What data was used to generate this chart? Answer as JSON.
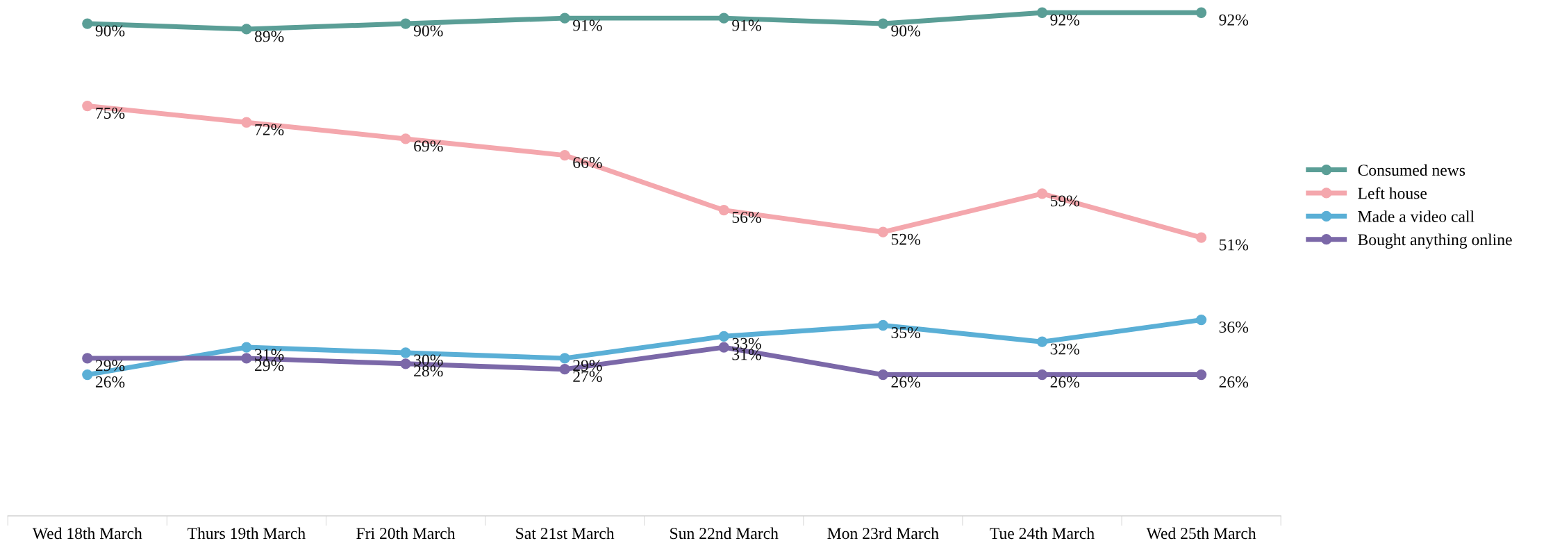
{
  "chart_data": {
    "type": "line",
    "categories": [
      "Wed 18th March",
      "Thurs 19th March",
      "Fri 20th March",
      "Sat 21st March",
      "Sun 22nd March",
      "Mon 23rd March",
      "Tue 24th March",
      "Wed 25th March"
    ],
    "legend": "right",
    "marker": "circle",
    "line_style": "solid",
    "tick_labels": "x",
    "series": [
      {
        "name": "Consumed news",
        "color": "#5a9e96",
        "values": [
          90,
          89,
          90,
          91,
          91,
          90,
          92,
          92
        ],
        "value_labels": [
          "90%",
          "89%",
          "90%",
          "91%",
          "91%",
          "90%",
          "92%",
          "92%"
        ]
      },
      {
        "name": "Left house",
        "color": "#f4a7ad",
        "values": [
          75,
          72,
          69,
          66,
          56,
          52,
          59,
          51
        ],
        "value_labels": [
          "75%",
          "72%",
          "69%",
          "66%",
          "56%",
          "52%",
          "59%",
          "51%"
        ]
      },
      {
        "name": "Made a video call",
        "color": "#5aafd6",
        "values": [
          26,
          31,
          30,
          29,
          33,
          35,
          32,
          36
        ],
        "value_labels": [
          "26%",
          "31%",
          "30%",
          "29%",
          "33%",
          "35%",
          "32%",
          "36%"
        ]
      },
      {
        "name": "Bought anything online",
        "color": "#7b68a8",
        "values": [
          29,
          29,
          28,
          27,
          31,
          26,
          26,
          26
        ],
        "value_labels": [
          "29%",
          "29%",
          "28%",
          "27%",
          "31%",
          "26%",
          "26%",
          "26%"
        ]
      }
    ]
  }
}
